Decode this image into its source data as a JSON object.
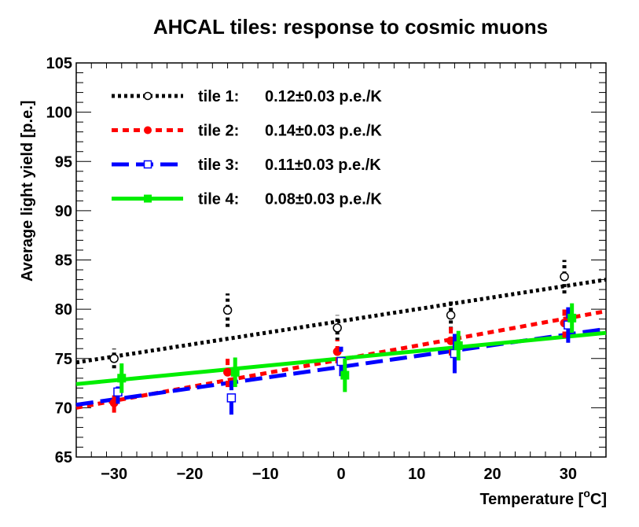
{
  "chart_data": {
    "type": "scatter",
    "title": "AHCAL tiles: response to cosmic muons",
    "xlabel": "Temperature [°C]",
    "xlabel_main": "Temperature [",
    "xlabel_sup": "o",
    "xlabel_end": "C]",
    "ylabel": "Average light yield [p.e.]",
    "xlim": [
      -35,
      35
    ],
    "ylim": [
      65,
      105
    ],
    "xticks": [
      -30,
      -20,
      -10,
      0,
      10,
      20,
      30
    ],
    "xtick_labels": [
      "−30",
      "−20",
      "−10",
      "0",
      "10",
      "20",
      "30"
    ],
    "yticks": [
      65,
      70,
      75,
      80,
      85,
      90,
      95,
      100,
      105
    ],
    "ytick_labels": [
      "65",
      "70",
      "75",
      "80",
      "85",
      "90",
      "95",
      "100",
      "105"
    ],
    "grid": false,
    "legend_position": "top-left",
    "series": [
      {
        "name": "tile 1:",
        "legend_value": "0.12±0.03 p.e./K",
        "color": "#000000",
        "line_style": "dotted",
        "marker": "open-circle",
        "x": [
          -30,
          -15,
          -0.5,
          14.5,
          29.5
        ],
        "y": [
          75.0,
          79.9,
          78.1,
          79.4,
          83.3
        ],
        "yerr": [
          1.0,
          1.7,
          1.3,
          1.5,
          1.7
        ],
        "fit": {
          "x": [
            -35,
            35
          ],
          "y": [
            74.6,
            83.0
          ]
        }
      },
      {
        "name": "tile 2:",
        "legend_value": "0.14±0.03 p.e./K",
        "color": "#ff0000",
        "line_style": "dashed-short",
        "marker": "filled-circle",
        "x": [
          -30,
          -15,
          -0.5,
          14.5,
          29.5
        ],
        "y": [
          70.5,
          73.6,
          75.7,
          76.8,
          78.6
        ],
        "yerr": [
          1.0,
          1.5,
          1.2,
          1.5,
          1.5
        ],
        "fit": {
          "x": [
            -35,
            35
          ],
          "y": [
            70.0,
            79.8
          ]
        }
      },
      {
        "name": "tile 3:",
        "legend_value": "0.11±0.03 p.e./K",
        "color": "#0000ff",
        "line_style": "dashed-long",
        "marker": "open-square",
        "x": [
          -29.5,
          -14.5,
          0,
          15,
          30
        ],
        "y": [
          71.6,
          71.0,
          74.7,
          75.5,
          78.4
        ],
        "yerr": [
          1.2,
          1.7,
          1.5,
          2.0,
          1.8
        ],
        "fit": {
          "x": [
            -35,
            35
          ],
          "y": [
            70.3,
            78.0
          ]
        }
      },
      {
        "name": "tile 4:",
        "legend_value": "0.08±0.03 p.e./K",
        "color": "#00ee00",
        "line_style": "solid",
        "marker": "filled-square",
        "x": [
          -29,
          -14,
          0.5,
          15.5,
          30.5
        ],
        "y": [
          73.0,
          73.6,
          73.3,
          76.3,
          79.1
        ],
        "yerr": [
          1.5,
          1.5,
          1.7,
          1.5,
          1.5
        ],
        "fit": {
          "x": [
            -35,
            35
          ],
          "y": [
            72.4,
            77.6
          ]
        }
      }
    ]
  }
}
